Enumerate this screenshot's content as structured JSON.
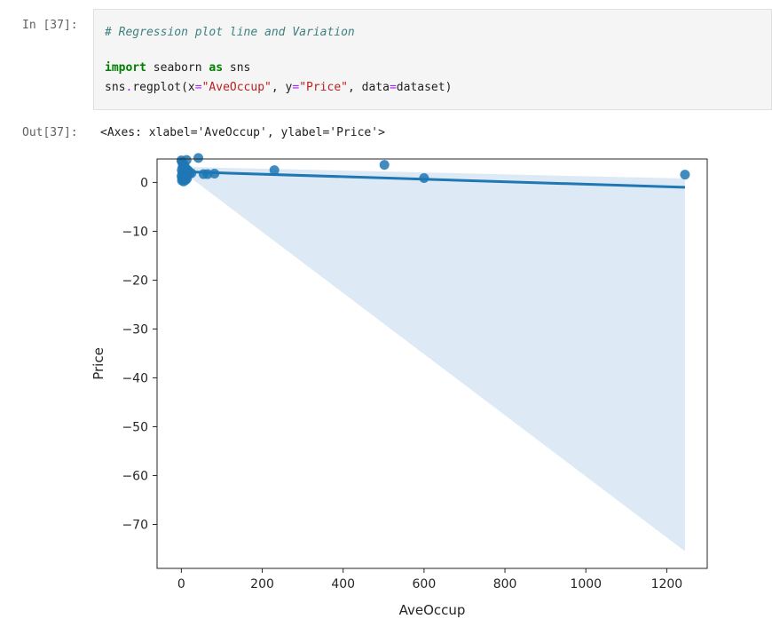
{
  "cell": {
    "in_prompt": "In [37]:",
    "out_prompt": "Out[37]:",
    "code": {
      "comment": "# Regression plot line and Variation",
      "line1": {
        "kw1": "import",
        "mod": " seaborn ",
        "kw2": "as",
        "alias": " sns"
      },
      "line2": {
        "p1": "sns",
        "dot": ".",
        "p2": "regplot(x",
        "eq1": "=",
        "s1": "\"AveOccup\"",
        "p3": ", y",
        "eq2": "=",
        "s2": "\"Price\"",
        "p4": ", data",
        "eq3": "=",
        "p5": "dataset)"
      }
    },
    "output_text": "<Axes: xlabel='AveOccup', ylabel='Price'>"
  },
  "chart_data": {
    "type": "scatter",
    "title": "",
    "xlabel": "AveOccup",
    "ylabel": "Price",
    "xlim": [
      -60,
      1300
    ],
    "ylim": [
      -79,
      4.8
    ],
    "xticks": [
      0,
      200,
      400,
      600,
      800,
      1000,
      1200
    ],
    "yticks": [
      0,
      -10,
      -20,
      -30,
      -40,
      -50,
      -60,
      -70
    ],
    "xtick_labels": [
      "0",
      "200",
      "400",
      "600",
      "800",
      "1000",
      "1200"
    ],
    "ytick_labels": [
      "0",
      "−10",
      "−20",
      "−30",
      "−40",
      "−50",
      "−60",
      "−70"
    ],
    "point_color": "#1f77b4",
    "line_color": "#1f77b4",
    "band_color": "#c6dcef",
    "points": [
      {
        "x": 0,
        "y": 4.5
      },
      {
        "x": 2,
        "y": 4.2
      },
      {
        "x": 4,
        "y": 3.9
      },
      {
        "x": 6,
        "y": 3.6
      },
      {
        "x": 8,
        "y": 3.4
      },
      {
        "x": 3,
        "y": 3.1
      },
      {
        "x": 5,
        "y": 2.8
      },
      {
        "x": 1,
        "y": 2.5
      },
      {
        "x": 7,
        "y": 2.2
      },
      {
        "x": 2.5,
        "y": 1.9
      },
      {
        "x": 4.5,
        "y": 1.6
      },
      {
        "x": 0.5,
        "y": 1.3
      },
      {
        "x": 6.5,
        "y": 1.0
      },
      {
        "x": 3.5,
        "y": 0.7
      },
      {
        "x": 1.5,
        "y": 0.4
      },
      {
        "x": 5.5,
        "y": 0.2
      },
      {
        "x": 2,
        "y": 0.9
      },
      {
        "x": 8,
        "y": 1.5
      },
      {
        "x": 10,
        "y": 2.0
      },
      {
        "x": 12,
        "y": 1.2
      },
      {
        "x": 14,
        "y": 0.8
      },
      {
        "x": 16,
        "y": 1.7
      },
      {
        "x": 18,
        "y": 2.3
      },
      {
        "x": 9,
        "y": 3.0
      },
      {
        "x": 11,
        "y": 0.5
      },
      {
        "x": 13,
        "y": 4.6
      },
      {
        "x": 15,
        "y": 2.6
      },
      {
        "x": 3,
        "y": 4.0
      },
      {
        "x": 20,
        "y": 1.8
      },
      {
        "x": 25,
        "y": 1.9
      },
      {
        "x": 42,
        "y": 5.0
      },
      {
        "x": 55,
        "y": 1.7
      },
      {
        "x": 65,
        "y": 1.7
      },
      {
        "x": 82,
        "y": 1.8
      },
      {
        "x": 230,
        "y": 2.5
      },
      {
        "x": 502,
        "y": 3.6
      },
      {
        "x": 600,
        "y": 0.9
      },
      {
        "x": 1245,
        "y": 1.6
      }
    ],
    "regression_line": {
      "x": [
        0,
        1245
      ],
      "y": [
        2.2,
        -1.0
      ]
    },
    "confidence_band": {
      "upper": [
        {
          "x": 0,
          "y": 3.2
        },
        {
          "x": 1245,
          "y": 0.8
        }
      ],
      "lower": [
        {
          "x": 0,
          "y": 1.3
        },
        {
          "x": 30,
          "y": 0.5
        },
        {
          "x": 1245,
          "y": -75.5
        }
      ]
    }
  }
}
